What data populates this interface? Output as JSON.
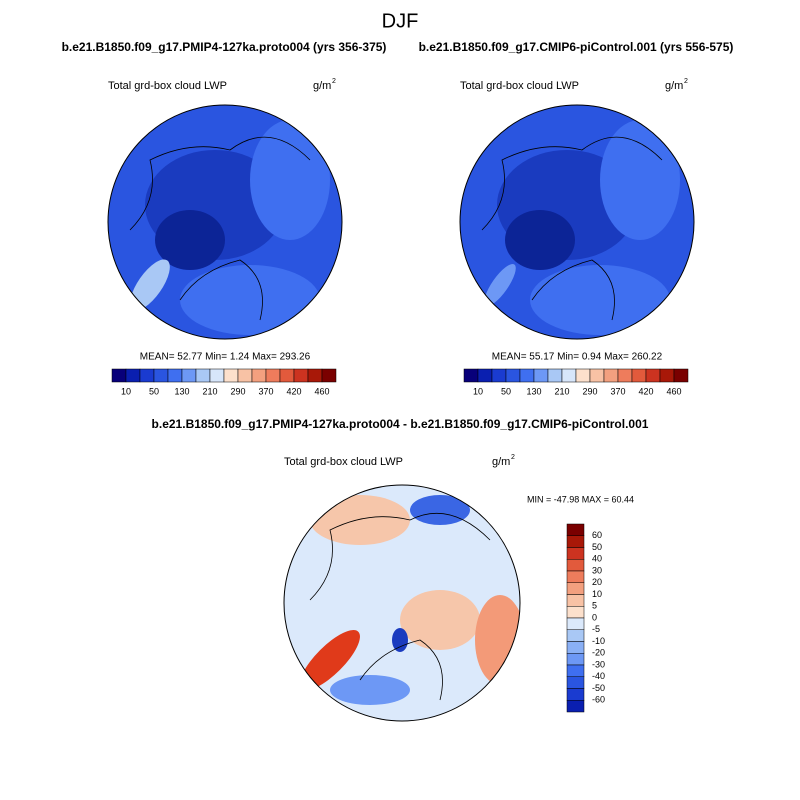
{
  "title": "DJF",
  "panels": [
    {
      "subtitle": "b.e21.B1850.f09_g17.PMIP4-127ka.proto004 (yrs 356-375)",
      "variable": "Total grd-box cloud LWP",
      "units": "g/m",
      "units_exponent": "2",
      "stats": "MEAN=  52.77  Min=   1.24  Max= 293.26",
      "colorbar_labels": [
        "10",
        "50",
        "130",
        "210",
        "290",
        "370",
        "420",
        "460"
      ]
    },
    {
      "subtitle": "b.e21.B1850.f09_g17.CMIP6-piControl.001 (yrs 556-575)",
      "variable": "Total grd-box cloud LWP",
      "units": "g/m",
      "units_exponent": "2",
      "stats": "MEAN=  55.17  Min=   0.94  Max= 260.22",
      "colorbar_labels": [
        "10",
        "50",
        "130",
        "210",
        "290",
        "370",
        "420",
        "460"
      ]
    }
  ],
  "difference": {
    "subtitle": "b.e21.B1850.f09_g17.PMIP4-127ka.proto004 - b.e21.B1850.f09_g17.CMIP6-piControl.001",
    "variable": "Total grd-box cloud LWP",
    "units": "g/m",
    "units_exponent": "2",
    "stats": "MIN = -47.98 MAX =  60.44",
    "colorbar_labels": [
      "60",
      "50",
      "40",
      "30",
      "20",
      "10",
      "5",
      "0",
      "-5",
      "-10",
      "-20",
      "-30",
      "-40",
      "-50",
      "-60"
    ]
  }
}
